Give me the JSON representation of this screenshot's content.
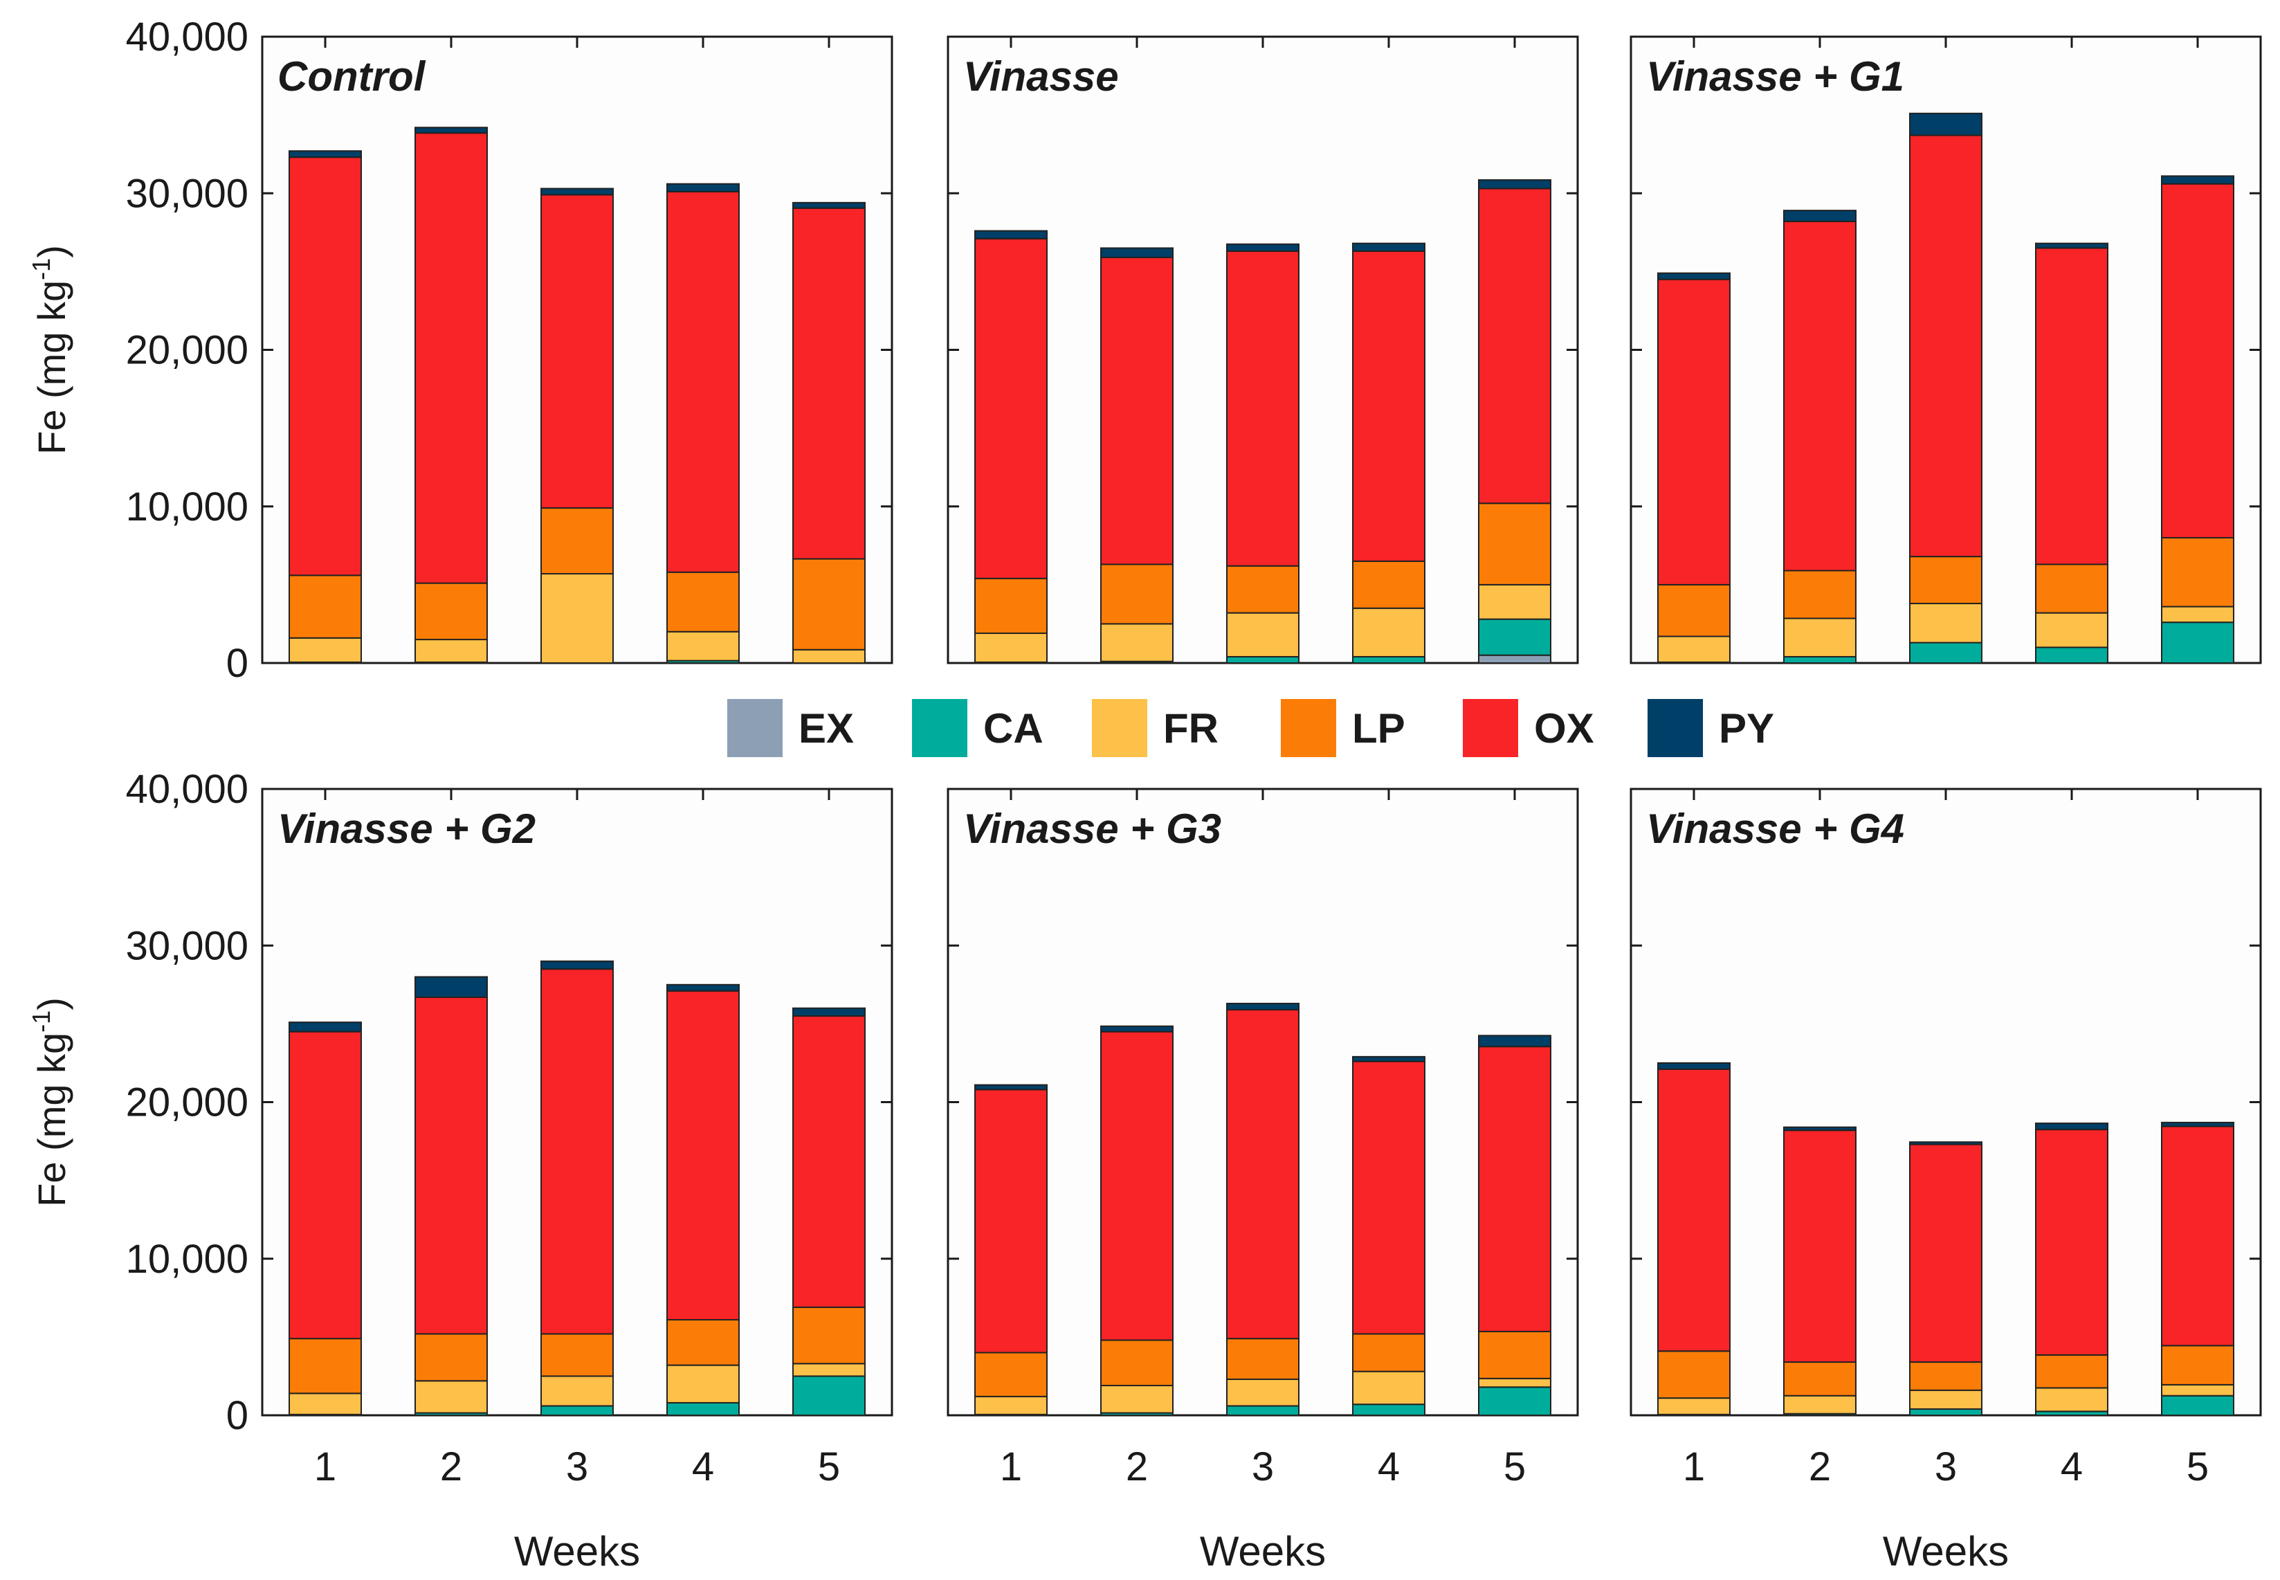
{
  "chart_data": {
    "type": "bar",
    "stacked": true,
    "ylabel_main": "Fe (mg kg",
    "ylabel_sup": "-1",
    "ylabel_close": ")",
    "xlabel": "Weeks",
    "ylim": [
      0,
      40000
    ],
    "yticks": [
      0,
      10000,
      20000,
      30000,
      40000
    ],
    "ytick_labels": [
      "0",
      "10,000",
      "20,000",
      "30,000",
      "40,000"
    ],
    "categories": [
      "1",
      "2",
      "3",
      "4",
      "5"
    ],
    "legend": [
      {
        "label": "EX",
        "color": "#8c9fb5"
      },
      {
        "label": "CA",
        "color": "#00ad9c"
      },
      {
        "label": "FR",
        "color": "#fdc048"
      },
      {
        "label": "LP",
        "color": "#fb7d07"
      },
      {
        "label": "OX",
        "color": "#f82427"
      },
      {
        "label": "PY",
        "color": "#003f67"
      }
    ],
    "panels": [
      {
        "title": "Control",
        "series": [
          {
            "name": "EX",
            "values": [
              0,
              0,
              0,
              0,
              0
            ]
          },
          {
            "name": "CA",
            "values": [
              50,
              50,
              0,
              150,
              0
            ]
          },
          {
            "name": "FR",
            "values": [
              1550,
              1450,
              5700,
              1850,
              850
            ]
          },
          {
            "name": "LP",
            "values": [
              4000,
              3600,
              4200,
              3800,
              5800
            ]
          },
          {
            "name": "OX",
            "values": [
              26700,
              28750,
              20000,
              24300,
              22400
            ]
          },
          {
            "name": "PY",
            "values": [
              400,
              350,
              400,
              500,
              350
            ]
          }
        ]
      },
      {
        "title": "Vinasse",
        "series": [
          {
            "name": "EX",
            "values": [
              0,
              0,
              0,
              0,
              500
            ]
          },
          {
            "name": "CA",
            "values": [
              50,
              100,
              400,
              400,
              2300
            ]
          },
          {
            "name": "FR",
            "values": [
              1850,
              2400,
              2800,
              3100,
              2200
            ]
          },
          {
            "name": "LP",
            "values": [
              3500,
              3800,
              3000,
              3000,
              5200
            ]
          },
          {
            "name": "OX",
            "values": [
              21700,
              19600,
              20100,
              19800,
              20100
            ]
          },
          {
            "name": "PY",
            "values": [
              500,
              600,
              450,
              500,
              550
            ]
          }
        ]
      },
      {
        "title": "Vinasse + G1",
        "series": [
          {
            "name": "EX",
            "values": [
              0,
              0,
              0,
              0,
              0
            ]
          },
          {
            "name": "CA",
            "values": [
              50,
              400,
              1300,
              1000,
              2600
            ]
          },
          {
            "name": "FR",
            "values": [
              1650,
              2450,
              2500,
              2200,
              1000
            ]
          },
          {
            "name": "LP",
            "values": [
              3300,
              3050,
              3000,
              3100,
              4400
            ]
          },
          {
            "name": "OX",
            "values": [
              19500,
              22300,
              26900,
              20200,
              22600
            ]
          },
          {
            "name": "PY",
            "values": [
              400,
              700,
              1400,
              300,
              500
            ]
          }
        ]
      },
      {
        "title": "Vinasse + G2",
        "series": [
          {
            "name": "EX",
            "values": [
              0,
              0,
              0,
              0,
              0
            ]
          },
          {
            "name": "CA",
            "values": [
              50,
              150,
              600,
              800,
              2500
            ]
          },
          {
            "name": "FR",
            "values": [
              1350,
              2050,
              1900,
              2400,
              800
            ]
          },
          {
            "name": "LP",
            "values": [
              3500,
              3000,
              2700,
              2900,
              3600
            ]
          },
          {
            "name": "OX",
            "values": [
              19600,
              21500,
              23300,
              21000,
              18600
            ]
          },
          {
            "name": "PY",
            "values": [
              600,
              1300,
              500,
              400,
              500
            ]
          }
        ]
      },
      {
        "title": "Vinasse + G3",
        "series": [
          {
            "name": "EX",
            "values": [
              0,
              0,
              0,
              0,
              0
            ]
          },
          {
            "name": "CA",
            "values": [
              50,
              150,
              600,
              700,
              1800
            ]
          },
          {
            "name": "FR",
            "values": [
              1150,
              1750,
              1700,
              2100,
              550
            ]
          },
          {
            "name": "LP",
            "values": [
              2800,
              2900,
              2600,
              2400,
              3000
            ]
          },
          {
            "name": "OX",
            "values": [
              16800,
              19700,
              21000,
              17400,
              18200
            ]
          },
          {
            "name": "PY",
            "values": [
              300,
              350,
              400,
              300,
              700
            ]
          }
        ]
      },
      {
        "title": "Vinasse + G4",
        "series": [
          {
            "name": "EX",
            "values": [
              0,
              0,
              0,
              0,
              0
            ]
          },
          {
            "name": "CA",
            "values": [
              50,
              100,
              400,
              250,
              1250
            ]
          },
          {
            "name": "FR",
            "values": [
              1050,
              1150,
              1200,
              1500,
              700
            ]
          },
          {
            "name": "LP",
            "values": [
              3000,
              2150,
              1800,
              2100,
              2500
            ]
          },
          {
            "name": "OX",
            "values": [
              18000,
              14800,
              13900,
              14400,
              14000
            ]
          },
          {
            "name": "PY",
            "values": [
              400,
              200,
              150,
              400,
              250
            ]
          }
        ]
      }
    ]
  }
}
